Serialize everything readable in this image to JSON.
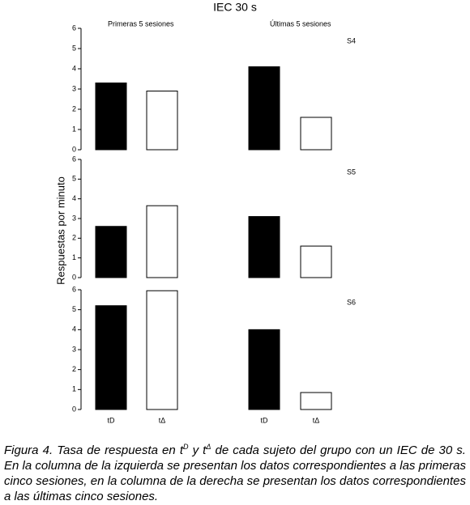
{
  "title": "IEC 30 s",
  "y_label": "Respuestas por minuto",
  "column_headers": [
    "Primeras 5 sesiones",
    "Últimas 5 sesiones"
  ],
  "categories": [
    "tD",
    "tΔ",
    "tD",
    "tΔ"
  ],
  "colors": [
    "#000000",
    "#ffffff",
    "#000000",
    "#ffffff"
  ],
  "chart_data": [
    {
      "type": "bar",
      "title": "S4",
      "values": [
        3.3,
        2.9,
        4.1,
        1.6
      ],
      "ylim": [
        0,
        6
      ],
      "yticks": [
        0,
        1,
        2,
        3,
        4,
        5,
        6
      ]
    },
    {
      "type": "bar",
      "title": "S5",
      "values": [
        2.6,
        3.65,
        3.1,
        1.6
      ],
      "ylim": [
        0,
        6
      ],
      "yticks": [
        0,
        1,
        2,
        3,
        4,
        5,
        6
      ]
    },
    {
      "type": "bar",
      "title": "S6",
      "values": [
        5.2,
        5.95,
        4.0,
        0.85
      ],
      "ylim": [
        0,
        6
      ],
      "yticks": [
        0,
        1,
        2,
        3,
        4,
        5,
        6
      ]
    }
  ],
  "caption": [
    "Figura 4. Tasa de respuesta en t",
    "D",
    " y t",
    "Δ",
    " de cada sujeto del grupo con un IEC de 30 s. En la columna de la izquierda se presentan los datos correspondientes a las primeras cinco sesiones, en la columna de la derecha se presentan los datos correspondientes a las últimas cinco sesiones."
  ]
}
